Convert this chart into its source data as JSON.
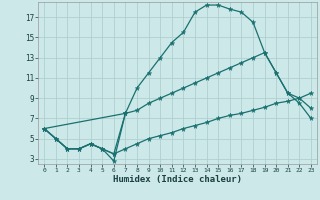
{
  "xlabel": "Humidex (Indice chaleur)",
  "bg_color": "#cce8e8",
  "grid_color": "#b0d0d0",
  "line_color": "#1a7070",
  "xlim": [
    -0.5,
    23.5
  ],
  "ylim": [
    2.5,
    18.5
  ],
  "yticks": [
    3,
    5,
    7,
    9,
    11,
    13,
    15,
    17
  ],
  "series": [
    {
      "x": [
        0,
        1,
        2,
        3,
        4,
        5,
        6,
        7
      ],
      "y": [
        6,
        5,
        4,
        4,
        4.5,
        4,
        2.8,
        7.5
      ]
    },
    {
      "x": [
        0,
        1,
        2,
        3,
        4,
        5,
        6,
        7,
        8,
        9,
        10,
        11,
        12,
        13,
        14,
        15,
        16,
        17,
        18,
        19,
        20,
        21,
        22,
        23
      ],
      "y": [
        6,
        5,
        4,
        4,
        4.5,
        4,
        3.5,
        4,
        4.5,
        5,
        5.3,
        5.6,
        6,
        6.3,
        6.6,
        7,
        7.3,
        7.5,
        7.8,
        8.1,
        8.5,
        8.7,
        9,
        9.5
      ]
    },
    {
      "x": [
        0,
        1,
        2,
        3,
        4,
        5,
        6,
        7,
        8,
        9,
        10,
        11,
        12,
        13,
        14,
        15,
        16,
        17,
        18,
        19,
        20,
        21,
        22,
        23
      ],
      "y": [
        6,
        5,
        4,
        4,
        4.5,
        4,
        3.5,
        7.5,
        7.8,
        8.5,
        9,
        9.5,
        10,
        10.5,
        11,
        11.5,
        12,
        12.5,
        13,
        13.5,
        11.5,
        9.5,
        8.5,
        7
      ]
    },
    {
      "x": [
        0,
        7,
        8,
        9,
        10,
        11,
        12,
        13,
        14,
        15,
        16,
        17,
        18,
        19,
        20,
        21,
        22,
        23
      ],
      "y": [
        6,
        7.5,
        10,
        11.5,
        13,
        14.5,
        15.5,
        17.5,
        18.2,
        18.2,
        17.8,
        17.5,
        16.5,
        13.5,
        11.5,
        9.5,
        9,
        8
      ]
    }
  ]
}
